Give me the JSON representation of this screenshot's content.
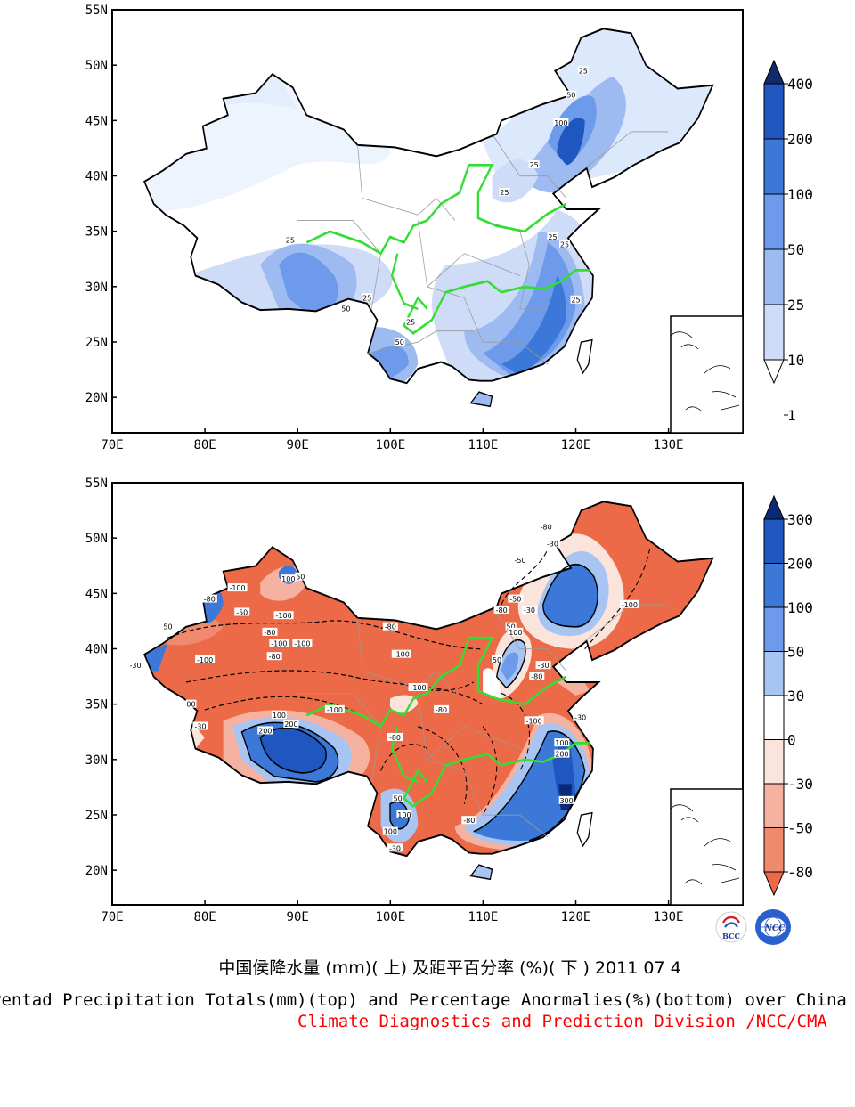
{
  "maps": [
    {
      "name": "precipitation-totals",
      "lat_ticks": [
        "55N",
        "50N",
        "45N",
        "40N",
        "35N",
        "30N",
        "25N",
        "20N"
      ],
      "lon_ticks": [
        "70E",
        "80E",
        "90E",
        "100E",
        "110E",
        "120E",
        "130E"
      ],
      "colorbar_labels": [
        "400",
        "200",
        "100",
        "50",
        "25",
        "10",
        "1"
      ],
      "colorbar_colors": [
        "#102a6a",
        "#1f56c0",
        "#3c78d8",
        "#6d9aea",
        "#9dbbf0",
        "#cfdcf7",
        "#ffffff"
      ],
      "contour_labels": [
        {
          "text": "25",
          "lon": 120.8,
          "lat": 49.5
        },
        {
          "text": "50",
          "lon": 119.5,
          "lat": 47.3
        },
        {
          "text": "100",
          "lon": 118.4,
          "lat": 44.8
        },
        {
          "text": "25",
          "lon": 115.5,
          "lat": 41.0
        },
        {
          "text": "25",
          "lon": 112.3,
          "lat": 38.5
        },
        {
          "text": "25",
          "lon": 89.2,
          "lat": 34.2
        },
        {
          "text": "50",
          "lon": 95.2,
          "lat": 28.0
        },
        {
          "text": "25",
          "lon": 97.5,
          "lat": 29.0
        },
        {
          "text": "25",
          "lon": 102.2,
          "lat": 26.8
        },
        {
          "text": "50",
          "lon": 101.0,
          "lat": 25.0
        },
        {
          "text": "25",
          "lon": 117.5,
          "lat": 34.5
        },
        {
          "text": "25",
          "lon": 118.8,
          "lat": 33.8
        },
        {
          "text": "25",
          "lon": 120.0,
          "lat": 28.8
        }
      ]
    },
    {
      "name": "percentage-anomalies",
      "lat_ticks": [
        "55N",
        "50N",
        "45N",
        "40N",
        "35N",
        "30N",
        "25N",
        "20N"
      ],
      "lon_ticks": [
        "70E",
        "80E",
        "90E",
        "100E",
        "110E",
        "120E",
        "130E"
      ],
      "colorbar_labels": [
        "300",
        "200",
        "100",
        "50",
        "30",
        "0",
        "-30",
        "-50",
        "-80"
      ],
      "colorbar_colors": [
        "#0a2a78",
        "#1f56c0",
        "#3c78d8",
        "#6d9aea",
        "#a8c4f2",
        "#ffffff",
        "#fbe4dc",
        "#f6b2a0",
        "#f08a6e",
        "#ec6a48"
      ],
      "contour_labels": [
        {
          "text": "-80",
          "lon": 116.8,
          "lat": 51.0
        },
        {
          "text": "-30",
          "lon": 117.5,
          "lat": 49.5
        },
        {
          "text": "-50",
          "lon": 114.0,
          "lat": 48.0
        },
        {
          "text": "-100",
          "lon": 125.8,
          "lat": 44.0
        },
        {
          "text": "-100",
          "lon": 83.5,
          "lat": 45.5
        },
        {
          "text": "-80",
          "lon": 80.5,
          "lat": 44.5
        },
        {
          "text": "-50",
          "lon": 84.0,
          "lat": 43.3
        },
        {
          "text": "-100",
          "lon": 88.5,
          "lat": 43.0
        },
        {
          "text": "-100",
          "lon": 80.0,
          "lat": 39.0
        },
        {
          "text": "-100",
          "lon": 88.0,
          "lat": 40.5
        },
        {
          "text": "-100",
          "lon": 90.5,
          "lat": 40.5
        },
        {
          "text": "-80",
          "lon": 87.5,
          "lat": 39.3
        },
        {
          "text": "-80",
          "lon": 87.0,
          "lat": 41.5
        },
        {
          "text": "-80",
          "lon": 100.0,
          "lat": 42.0
        },
        {
          "text": "-100",
          "lon": 101.2,
          "lat": 39.5
        },
        {
          "text": "-100",
          "lon": 103.0,
          "lat": 36.5
        },
        {
          "text": "-100",
          "lon": 94.0,
          "lat": 34.5
        },
        {
          "text": "-80",
          "lon": 105.5,
          "lat": 34.5
        },
        {
          "text": "-80",
          "lon": 100.5,
          "lat": 32.0
        },
        {
          "text": "100",
          "lon": 88.0,
          "lat": 34.0
        },
        {
          "text": "200",
          "lon": 86.5,
          "lat": 32.6
        },
        {
          "text": "200",
          "lon": 89.3,
          "lat": 33.2
        },
        {
          "text": "50",
          "lon": 100.8,
          "lat": 26.5
        },
        {
          "text": "100",
          "lon": 101.5,
          "lat": 25.0
        },
        {
          "text": "-80",
          "lon": 108.5,
          "lat": 24.5
        },
        {
          "text": "50",
          "lon": 113.0,
          "lat": 42.0
        },
        {
          "text": "50",
          "lon": 111.5,
          "lat": 39.0
        },
        {
          "text": "100",
          "lon": 113.5,
          "lat": 41.5
        },
        {
          "text": "-50",
          "lon": 113.5,
          "lat": 44.5
        },
        {
          "text": "-80",
          "lon": 112.0,
          "lat": 43.5
        },
        {
          "text": "-30",
          "lon": 115.0,
          "lat": 43.5
        },
        {
          "text": "-80",
          "lon": 115.8,
          "lat": 37.5
        },
        {
          "text": "-100",
          "lon": 115.5,
          "lat": 33.5
        },
        {
          "text": "100",
          "lon": 118.5,
          "lat": 31.5
        },
        {
          "text": "200",
          "lon": 118.5,
          "lat": 30.5
        },
        {
          "text": "300",
          "lon": 119.0,
          "lat": 26.3
        },
        {
          "text": "-30",
          "lon": 120.5,
          "lat": 33.8
        },
        {
          "text": "-30",
          "lon": 116.5,
          "lat": 38.5
        },
        {
          "text": "-30",
          "lon": 72.5,
          "lat": 38.5
        },
        {
          "text": "00",
          "lon": 78.5,
          "lat": 35.0
        },
        {
          "text": "-30",
          "lon": 79.5,
          "lat": 33.0
        },
        {
          "text": "100",
          "lon": 100.0,
          "lat": 23.5
        },
        {
          "text": "-30",
          "lon": 100.5,
          "lat": 22.0
        },
        {
          "text": "50",
          "lon": 90.3,
          "lat": 46.5
        },
        {
          "text": "100",
          "lon": 89.0,
          "lat": 46.3
        },
        {
          "text": "50",
          "lon": 76.0,
          "lat": 42.0
        }
      ]
    }
  ],
  "footer": {
    "title_cn": "中国侯降水量 (mm)( 上) 及距平百分率 (%)( 下 ) 2011 07 4",
    "title_en": "Pentad Precipitation Totals(mm)(top) and Percentage Anormalies(%)(bottom) over China",
    "credit": "Climate Diagnostics and Prediction Division /NCC/CMA",
    "logo_left_text": "BCC",
    "logo_right_text": "NCC"
  }
}
